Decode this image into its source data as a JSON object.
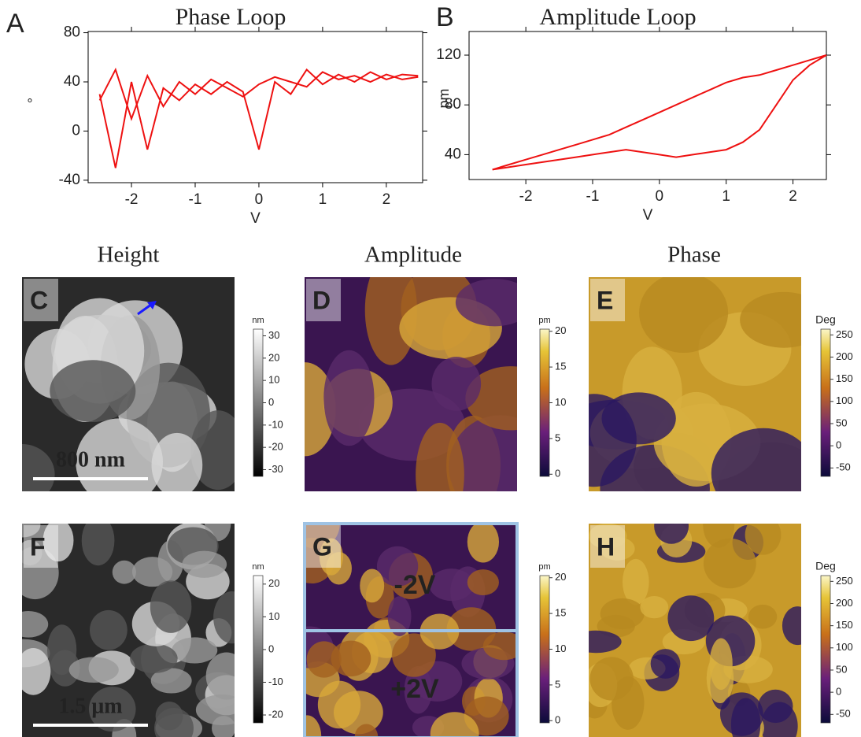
{
  "chart_data": [
    {
      "type": "line",
      "panel": "A",
      "title": "Phase Loop",
      "xlabel": "V",
      "ylabel": "°",
      "x": [
        -2.5,
        -2.25,
        -2,
        -1.75,
        -1.5,
        -1.25,
        -1,
        -0.75,
        -0.5,
        -0.25,
        0,
        0.25,
        0.5,
        0.75,
        1,
        1.25,
        1.5,
        1.75,
        2,
        2.25,
        2.5
      ],
      "series": [
        {
          "color": "#ee1111",
          "values": [
            25,
            50,
            10,
            45,
            20,
            40,
            30,
            42,
            35,
            28,
            38,
            44,
            40,
            36,
            48,
            42,
            45,
            40,
            46,
            42,
            44
          ]
        },
        {
          "color": "#ee1111",
          "values": [
            30,
            -30,
            40,
            -15,
            35,
            25,
            38,
            30,
            40,
            32,
            -15,
            40,
            30,
            50,
            38,
            46,
            40,
            48,
            42,
            46,
            45
          ]
        }
      ],
      "xlim": [
        -2.68,
        2.57
      ],
      "xticks": [
        -2,
        -1,
        0,
        1,
        2
      ],
      "ylim": [
        -42,
        81
      ],
      "yticks": [
        -40,
        0,
        40,
        80
      ]
    },
    {
      "type": "line",
      "panel": "B",
      "title": "Amplitude Loop",
      "xlabel": "V",
      "ylabel": "pm",
      "x": [
        -2.5,
        -2.25,
        -2,
        -1.75,
        -1.5,
        -1.25,
        -1,
        -0.75,
        -0.5,
        -0.25,
        0,
        0.25,
        0.5,
        0.75,
        1,
        1.25,
        1.5,
        1.75,
        2,
        2.25,
        2.5
      ],
      "series": [
        {
          "color": "#ee1111",
          "values": [
            28,
            30,
            32,
            34,
            36,
            38,
            40,
            42,
            44,
            42,
            40,
            38,
            40,
            42,
            44,
            50,
            60,
            80,
            100,
            112,
            120
          ]
        },
        {
          "color": "#ee1111",
          "values": [
            28,
            32,
            36,
            40,
            44,
            48,
            52,
            56,
            62,
            68,
            74,
            80,
            86,
            92,
            98,
            102,
            104,
            108,
            112,
            116,
            120
          ]
        }
      ],
      "xlim": [
        -2.85,
        2.5
      ],
      "xticks": [
        -2,
        -1,
        0,
        1,
        2
      ],
      "ylim": [
        20,
        139
      ],
      "yticks": [
        40,
        80,
        120
      ]
    }
  ],
  "column_titles": [
    "Height",
    "Amplitude",
    "Phase"
  ],
  "panels": [
    {
      "label": "C",
      "scale_bar": "800 nm",
      "colorbar": {
        "unit": "nm",
        "lim": [
          -33,
          33
        ],
        "ticks": [
          30,
          20,
          10,
          0,
          -10,
          -20,
          -30
        ]
      }
    },
    {
      "label": "D",
      "colorbar": {
        "unit": "pm",
        "lim": [
          -0.3,
          20.3
        ],
        "ticks": [
          20,
          15,
          10,
          5,
          0
        ]
      }
    },
    {
      "label": "E",
      "colorbar": {
        "unit": "Deg",
        "lim": [
          -69,
          263
        ],
        "ticks": [
          250,
          200,
          150,
          100,
          50,
          0,
          -50
        ]
      }
    },
    {
      "label": "F",
      "scale_bar": "1.5 μm",
      "colorbar": {
        "unit": "nm",
        "lim": [
          -22.4,
          22.6
        ],
        "ticks": [
          20,
          10,
          0,
          -10,
          -20
        ]
      }
    },
    {
      "label": "G",
      "annotations": [
        "-2V",
        "+2V"
      ],
      "colorbar": {
        "unit": "pm",
        "lim": [
          -0.3,
          20.3
        ],
        "ticks": [
          20,
          15,
          10,
          5,
          0
        ]
      }
    },
    {
      "label": "H",
      "colorbar": {
        "unit": "Deg",
        "lim": [
          -69,
          263
        ],
        "ticks": [
          250,
          200,
          150,
          100,
          50,
          0,
          -50
        ]
      }
    }
  ]
}
